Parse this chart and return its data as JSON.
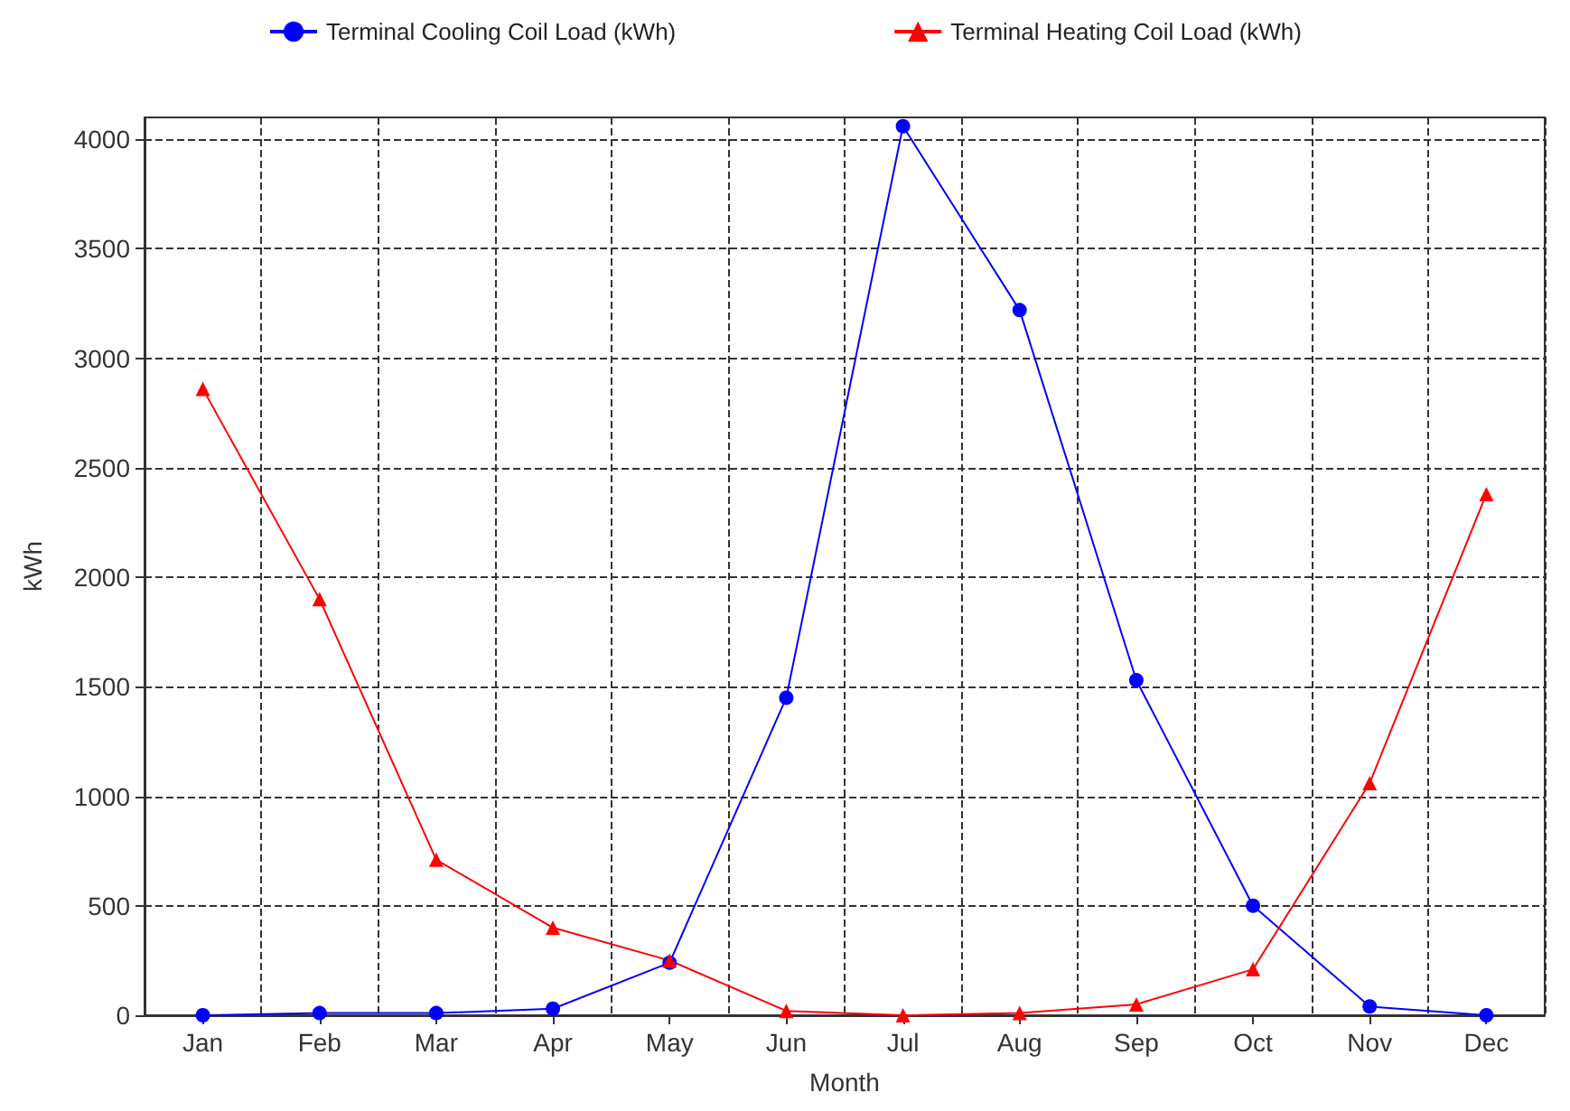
{
  "chart_data": {
    "type": "line",
    "xlabel": "Month",
    "ylabel": "kWh",
    "categories": [
      "Jan",
      "Feb",
      "Mar",
      "Apr",
      "May",
      "Jun",
      "Jul",
      "Aug",
      "Sep",
      "Oct",
      "Nov",
      "Dec"
    ],
    "series": [
      {
        "name": "Terminal Cooling Coil Load (kWh)",
        "color": "#0000ff",
        "marker": "circle",
        "values": [
          0,
          10,
          10,
          30,
          240,
          1450,
          4060,
          3220,
          1530,
          500,
          40,
          0
        ]
      },
      {
        "name": "Terminal Heating Coil Load (kWh)",
        "color": "#ff0000",
        "marker": "triangle",
        "values": [
          2860,
          1900,
          710,
          400,
          250,
          20,
          0,
          10,
          50,
          210,
          1060,
          2380
        ]
      }
    ],
    "ylim": [
      0,
      4100
    ],
    "yticks": [
      0,
      500,
      1000,
      1500,
      2000,
      2500,
      3000,
      3500,
      4000
    ],
    "grid": true,
    "legend": "top"
  }
}
